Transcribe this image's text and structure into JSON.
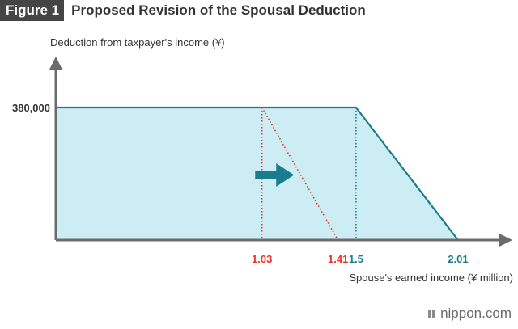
{
  "figure": {
    "badge": "Figure 1",
    "title": "Proposed Revision of the Spousal Deduction"
  },
  "brand": {
    "name": "nippon",
    "dot": ".",
    "suffix": "com",
    "icon": "nippon-logo-icon"
  },
  "colors": {
    "current": "#e5332a",
    "proposed": "#1b7c8e",
    "fill": "#ccedf3",
    "axis": "#6b6b6b",
    "arrow": "#1b7c8e"
  },
  "chart_data": {
    "type": "area",
    "ylabel": "Deduction from taxpayer's income (¥)",
    "xlabel": "Spouse's earned income (¥ million)",
    "xlim": [
      0,
      2.01
    ],
    "ylim": [
      0,
      380000
    ],
    "y_ticks": [
      {
        "value": 380000,
        "label": "380,000"
      }
    ],
    "x_ticks": [
      {
        "value": 1.03,
        "label": "1.03",
        "series": "current"
      },
      {
        "value": 1.41,
        "label": "1.41",
        "series": "current"
      },
      {
        "value": 1.5,
        "label": "1.5",
        "series": "proposed"
      },
      {
        "value": 2.01,
        "label": "2.01",
        "series": "proposed"
      }
    ],
    "series": [
      {
        "key": "current",
        "style": "dotted",
        "points": [
          [
            0,
            380000
          ],
          [
            1.03,
            380000
          ],
          [
            1.41,
            0
          ]
        ]
      },
      {
        "key": "proposed",
        "style": "solid",
        "points": [
          [
            0,
            380000
          ],
          [
            1.5,
            380000
          ],
          [
            2.01,
            0
          ]
        ]
      }
    ],
    "annotation": {
      "type": "arrow",
      "from": "current",
      "to": "proposed"
    }
  }
}
